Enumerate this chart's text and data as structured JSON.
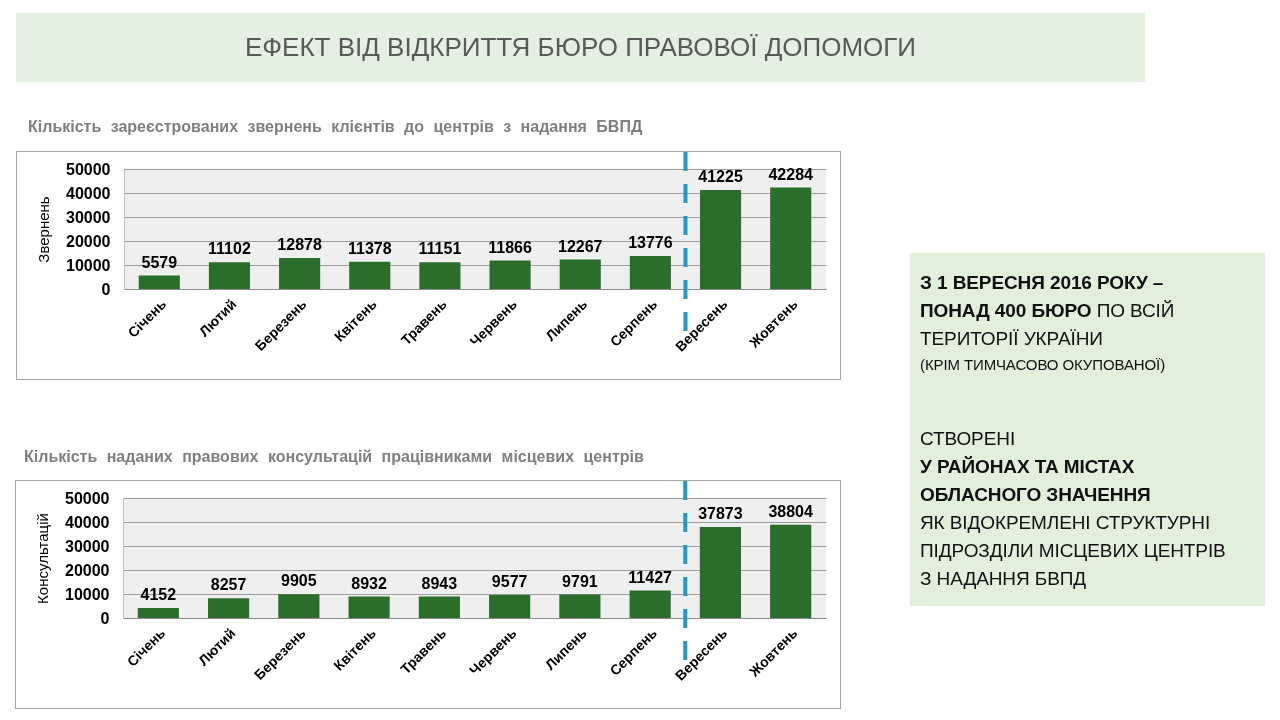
{
  "chart_data": [
    {
      "type": "other",
      "title": "ЕФЕКТ ВІД ВІДКРИТТЯ БЮРО ПРАВОВОЇ ДОПОМОГИ"
    },
    {
      "type": "bar",
      "title": "Кількість зареєстрованих звернень клієнтів до центрів з надання БВПД",
      "ylabel": "Звернень",
      "categories": [
        "Січень",
        "Лютий",
        "Березень",
        "Квітень",
        "Травень",
        "Червень",
        "Липень",
        "Серпень",
        "Вересень",
        "Жовтень"
      ],
      "values": [
        5579,
        11102,
        12878,
        11378,
        11151,
        11866,
        12267,
        13776,
        41225,
        42284
      ],
      "color": "#2b6e2b",
      "ylim": [
        0,
        50000
      ],
      "yticks": [
        0,
        10000,
        20000,
        30000,
        40000,
        50000
      ],
      "grid": "y",
      "data_labels": true,
      "ref_lines": [
        {
          "axis": "x",
          "value": "Вересень",
          "color": "#1b9bd1",
          "line_style": "dashed"
        }
      ]
    },
    {
      "type": "bar",
      "title": "Кількість наданих правових консультацій працівниками місцевих центрів",
      "ylabel": "Консультацій",
      "categories": [
        "Січень",
        "Лютий",
        "Березень",
        "Квітень",
        "Травень",
        "Червень",
        "Липень",
        "Серпень",
        "Вересень",
        "Жовтень"
      ],
      "values": [
        4152,
        8257,
        9905,
        8932,
        8943,
        9577,
        9791,
        11427,
        37873,
        38804
      ],
      "color": "#2b6e2b",
      "ylim": [
        0,
        50000
      ],
      "yticks": [
        0,
        10000,
        20000,
        30000,
        40000,
        50000
      ],
      "grid": "y",
      "data_labels": true,
      "ref_lines": [
        {
          "axis": "x",
          "value": "Вересень",
          "color": "#1b9bd1",
          "line_style": "dashed"
        }
      ]
    },
    {
      "type": "other",
      "annotations": [
        "З 1 ВЕРЕСНЯ 2016 РОКУ –",
        "ПОНАД 400 БЮРО",
        "ПО ВСІЙ",
        "ТЕРИТОРІЇ УКРАЇНИ",
        "(КРІМ ТИМЧАСОВО ОКУПОВАНОЇ)",
        "СТВОРЕНІ",
        "У РАЙОНАХ ТА МІСТАХ",
        "ОБЛАСНОГО ЗНАЧЕННЯ",
        "ЯК ВІДОКРЕМЛЕНІ СТРУКТУРНІ",
        "ПІДРОЗДІЛИ МІСЦЕВИХ ЦЕНТРІВ",
        "З НАДАННЯ БВПД"
      ]
    }
  ]
}
